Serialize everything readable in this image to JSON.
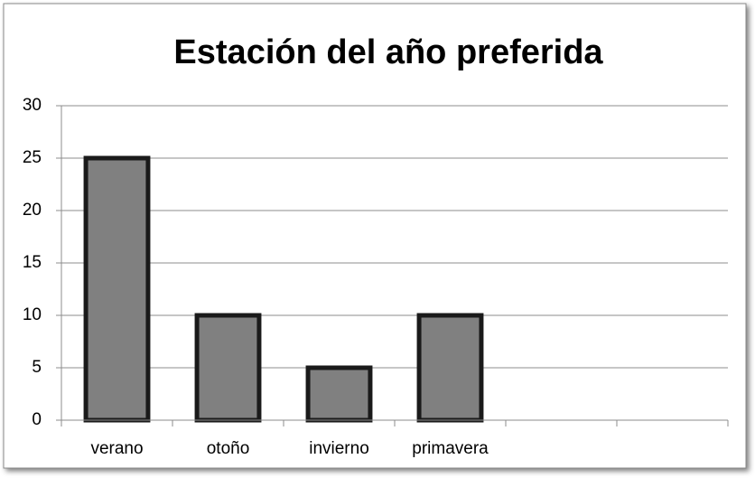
{
  "chart_data": {
    "type": "bar",
    "title": "Estación del año preferida",
    "categories": [
      "verano",
      "otoño",
      "invierno",
      "primavera",
      null,
      null
    ],
    "values": [
      25,
      10,
      5,
      10,
      null,
      null
    ],
    "color": "#808080",
    "ylim": [
      0,
      30
    ],
    "yticks": [
      0,
      5,
      10,
      15,
      20,
      25,
      30
    ],
    "grid": true
  }
}
